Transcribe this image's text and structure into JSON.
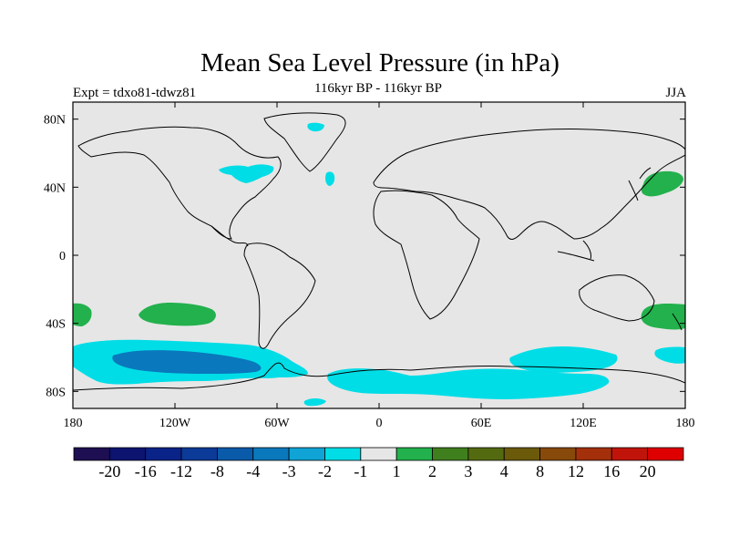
{
  "map": {
    "title": "Mean Sea Level Pressure (in hPa)",
    "subtitle": "116kyr BP - 116kyr BP",
    "experiment": "Expt = tdxo81-tdwz81",
    "season": "JJA",
    "projection": "cylindrical equidistant",
    "lon_ticks": [
      "180",
      "120W",
      "60W",
      "0",
      "60E",
      "120E",
      "180"
    ],
    "lat_ticks": [
      "80N",
      "40N",
      "0",
      "40S",
      "80S"
    ],
    "background_color": "#e6e6e6",
    "coastline_color": "#000000"
  },
  "colorbar": {
    "labels": [
      "-20",
      "-16",
      "-12",
      "-8",
      "-4",
      "-3",
      "-2",
      "-1",
      "1",
      "2",
      "3",
      "4",
      "8",
      "12",
      "16",
      "20"
    ],
    "colors": [
      "#1e0f52",
      "#0c1470",
      "#0a2388",
      "#0b3a98",
      "#0a5aaa",
      "#0a78bc",
      "#10a4d6",
      "#00dde6",
      "#e6e6e6",
      "#22b14c",
      "#3f7f1e",
      "#546a10",
      "#6b5a0a",
      "#884a0a",
      "#a3300a",
      "#c0140a",
      "#de0000"
    ]
  },
  "anomaly_regions": [
    {
      "name": "north-america-lakes",
      "color": "#00dde6"
    },
    {
      "name": "greenland",
      "color": "#00dde6"
    },
    {
      "name": "north-atlantic",
      "color": "#00dde6"
    },
    {
      "name": "north-pacific-japan",
      "color": "#22b14c"
    },
    {
      "name": "south-pacific-mid",
      "color": "#22b14c"
    },
    {
      "name": "south-pacific-west-edge",
      "color": "#22b14c"
    },
    {
      "name": "tasman-sea",
      "color": "#22b14c"
    },
    {
      "name": "southern-ocean-pacific",
      "color": "#00dde6"
    },
    {
      "name": "amundsen-sea-core",
      "color": "#0a78bc"
    },
    {
      "name": "southern-ocean-indian",
      "color": "#00dde6"
    },
    {
      "name": "antarctic-coast",
      "color": "#00dde6"
    }
  ]
}
